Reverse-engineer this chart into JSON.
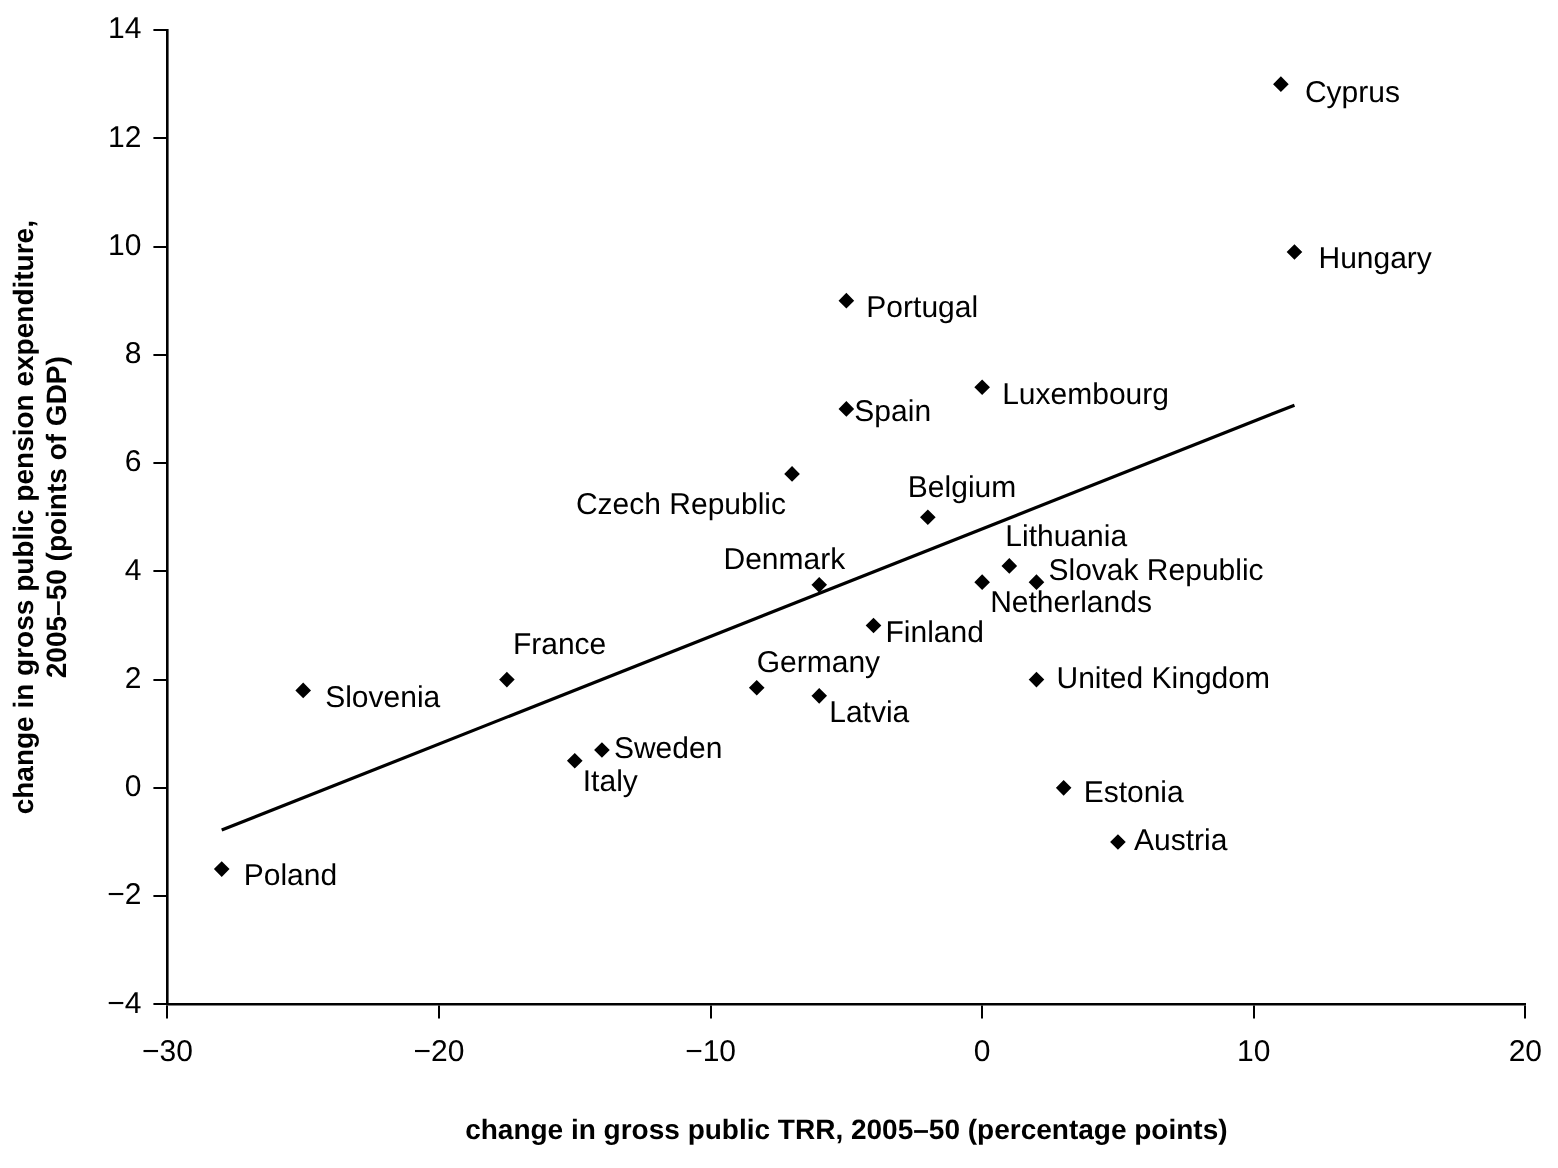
{
  "chart_data": {
    "type": "scatter",
    "xlabel": "change in gross public TRR, 2005–50 (percentage points)",
    "ylabel": "change in gross public pension expenditure, 2005–50 (points of GDP)",
    "xlim": [
      -30,
      20
    ],
    "xticks": [
      -30,
      -20,
      -10,
      0,
      10,
      20
    ],
    "ylim": [
      -4,
      14
    ],
    "yticks": [
      -4,
      -2,
      0,
      2,
      4,
      6,
      8,
      10,
      12,
      14
    ],
    "grid": false,
    "legend": false,
    "marker": "diamond",
    "series": [
      {
        "type": "scatter",
        "color": "#000000",
        "x": [
          11.0,
          11.5,
          -5.0,
          -5.0,
          0,
          -7.0,
          -2.0,
          1.0,
          2.0,
          0,
          -6.0,
          -4.0,
          -8.3,
          -6.0,
          2.0,
          3.0,
          5.0,
          -25.0,
          -17.5,
          -15.0,
          -14.0,
          -28.0
        ],
        "values": [
          13.0,
          9.9,
          9.0,
          7.0,
          7.4,
          5.8,
          5.0,
          4.1,
          3.8,
          3.8,
          3.75,
          3.0,
          1.85,
          1.7,
          2.0,
          0,
          -1.0,
          1.8,
          2.0,
          0.5,
          0.7,
          -1.5
        ]
      },
      {
        "type": "line",
        "color": "#000000",
        "marker": "none",
        "line_style": "solid",
        "x": [
          -28,
          11.5
        ],
        "values": [
          -0.78,
          7.07
        ]
      }
    ],
    "annotations": [
      {
        "text": "Cyprus",
        "x": 11.0,
        "y": 13.0
      },
      {
        "text": "Hungary",
        "x": 11.5,
        "y": 9.9
      },
      {
        "text": "Portugal",
        "x": -5.0,
        "y": 9.0
      },
      {
        "text": "Spain",
        "x": -5.0,
        "y": 7.0
      },
      {
        "text": "Luxembourg",
        "x": 0,
        "y": 7.4
      },
      {
        "text": "Czech Republic",
        "x": -7.0,
        "y": 5.8
      },
      {
        "text": "Belgium",
        "x": -2.0,
        "y": 5.0
      },
      {
        "text": "Lithuania",
        "x": 1.0,
        "y": 4.1
      },
      {
        "text": "Slovak Republic",
        "x": 2.0,
        "y": 3.8
      },
      {
        "text": "Netherlands",
        "x": 0,
        "y": 3.8
      },
      {
        "text": "Denmark",
        "x": -6.0,
        "y": 3.75
      },
      {
        "text": "Finland",
        "x": -4.0,
        "y": 3.0
      },
      {
        "text": "Germany",
        "x": -8.3,
        "y": 1.85
      },
      {
        "text": "Latvia",
        "x": -6.0,
        "y": 1.7
      },
      {
        "text": "United Kingdom",
        "x": 2.0,
        "y": 2.0
      },
      {
        "text": "Estonia",
        "x": 3.0,
        "y": 0
      },
      {
        "text": "Austria",
        "x": 5.0,
        "y": -1.0
      },
      {
        "text": "Slovenia",
        "x": -25.0,
        "y": 1.8
      },
      {
        "text": "France",
        "x": -17.5,
        "y": 2.0
      },
      {
        "text": "Italy",
        "x": -15.0,
        "y": 0.5
      },
      {
        "text": "Sweden",
        "x": -14.0,
        "y": 0.7
      },
      {
        "text": "Poland",
        "x": -28.0,
        "y": -1.5
      }
    ]
  }
}
